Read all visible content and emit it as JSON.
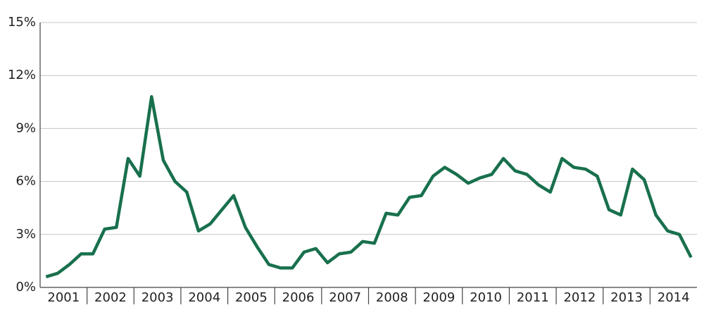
{
  "chart_data": {
    "type": "line",
    "categories": [
      "2001",
      null,
      null,
      null,
      "2002",
      null,
      null,
      null,
      "2003",
      null,
      null,
      null,
      "2004",
      null,
      null,
      null,
      "2005",
      null,
      null,
      null,
      "2006",
      null,
      null,
      null,
      "2007",
      null,
      null,
      null,
      "2008",
      null,
      null,
      null,
      "2009",
      null,
      null,
      null,
      "2010",
      null,
      null,
      null,
      "2011",
      null,
      null,
      null,
      "2012",
      null,
      null,
      null,
      "2013",
      null,
      null,
      null,
      "2014",
      null,
      null,
      null
    ],
    "series": [
      {
        "color": "#18704c",
        "values": [
          0.6,
          0.8,
          1.3,
          1.9,
          1.9,
          3.3,
          3.4,
          7.3,
          6.3,
          10.8,
          7.2,
          6.0,
          5.4,
          3.2,
          3.6,
          4.4,
          5.2,
          3.4,
          2.3,
          1.3,
          1.1,
          1.1,
          2.0,
          2.2,
          1.4,
          1.9,
          2.0,
          2.6,
          2.5,
          4.2,
          4.1,
          5.1,
          5.2,
          6.3,
          6.8,
          6.4,
          5.9,
          6.2,
          6.4,
          7.3,
          6.6,
          6.4,
          5.8,
          5.4,
          7.3,
          6.8,
          6.7,
          6.3,
          4.4,
          4.1,
          6.7,
          6.1,
          4.1,
          3.2,
          3.0,
          1.7
        ]
      }
    ],
    "ylim": [
      0,
      15
    ],
    "yticks": [
      {
        "value": 0,
        "label": "0%"
      },
      {
        "value": 3,
        "label": "3%"
      },
      {
        "value": 6,
        "label": "6%"
      },
      {
        "value": 9,
        "label": "9%"
      },
      {
        "value": 12,
        "label": "12%"
      },
      {
        "value": 15,
        "label": "15%"
      }
    ],
    "grid": true
  }
}
